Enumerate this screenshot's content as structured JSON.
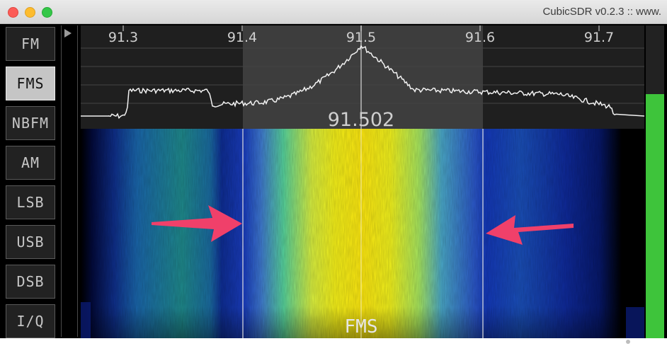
{
  "window": {
    "title": "CubicSDR v0.2.3 :: www."
  },
  "modes": {
    "items": [
      {
        "label": "FM",
        "active": false
      },
      {
        "label": "FMS",
        "active": true
      },
      {
        "label": "NBFM",
        "active": false
      },
      {
        "label": "AM",
        "active": false
      },
      {
        "label": "LSB",
        "active": false
      },
      {
        "label": "USB",
        "active": false
      },
      {
        "label": "DSB",
        "active": false
      },
      {
        "label": "I/Q",
        "active": false
      }
    ]
  },
  "spectrum": {
    "freq_ticks": [
      "91.3",
      "91.4",
      "91.5",
      "91.6",
      "91.7"
    ],
    "center_freq_label": "91.502",
    "bandwidth_start": "91.4",
    "bandwidth_end": "91.6"
  },
  "waterfall": {
    "mode_label": "FMS"
  },
  "meter": {
    "level": 0.78,
    "color": "#3ec43b"
  },
  "colors": {
    "active_mode": "#c5c5c5",
    "arrow": "#f0406a"
  }
}
